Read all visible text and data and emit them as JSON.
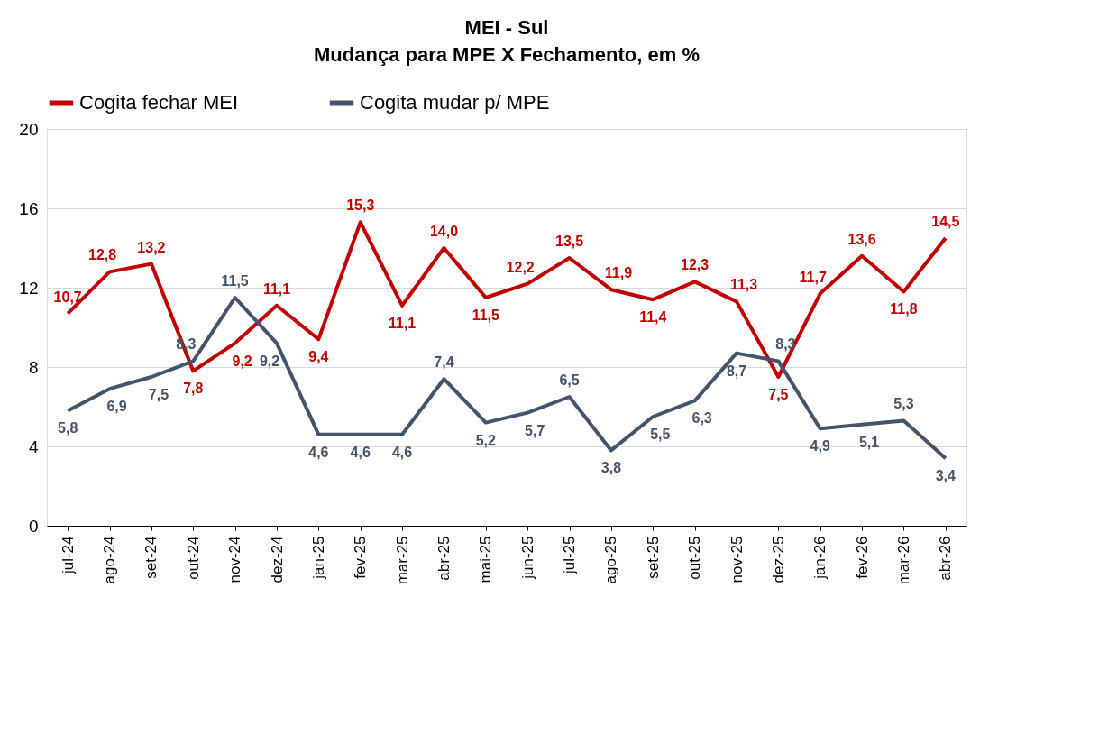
{
  "chart_data": {
    "type": "line",
    "title": "MEI - Sul",
    "subtitle": "Mudança para MPE X Fechamento, em %",
    "categories": [
      "jul-24",
      "ago-24",
      "set-24",
      "out-24",
      "nov-24",
      "dez-24",
      "jan-25",
      "fev-25",
      "mar-25",
      "abr-25",
      "mai-25",
      "jun-25",
      "jul-25",
      "ago-25",
      "set-25",
      "out-25",
      "nov-25",
      "dez-25",
      "jan-26",
      "fev-26",
      "mar-26",
      "abr-26"
    ],
    "series": [
      {
        "name": "Cogita fechar MEI",
        "color": "#c00000",
        "values": [
          10.7,
          12.8,
          13.2,
          7.8,
          9.2,
          11.1,
          9.4,
          15.3,
          11.1,
          14.0,
          11.5,
          12.2,
          13.5,
          11.9,
          11.4,
          12.3,
          11.3,
          7.5,
          11.7,
          13.6,
          11.8,
          14.5
        ],
        "value_labels": [
          "10,7",
          "12,8",
          "13,2",
          "7,8",
          "9,2",
          "11,1",
          "9,4",
          "15,3",
          "11,1",
          "14,0",
          "11,5",
          "12,2",
          "13,5",
          "11,9",
          "11,4",
          "12,3",
          "11,3",
          "7,5",
          "11,7",
          "13,6",
          "11,8",
          "14,5"
        ]
      },
      {
        "name": "Cogita mudar p/ MPE",
        "color": "#44546a",
        "values": [
          5.8,
          6.9,
          7.5,
          8.3,
          11.5,
          9.2,
          4.6,
          4.6,
          4.6,
          7.4,
          5.2,
          5.7,
          6.5,
          3.8,
          5.5,
          6.3,
          8.7,
          8.3,
          4.9,
          5.1,
          5.3,
          3.4
        ],
        "value_labels": [
          "5,8",
          "6,9",
          "7,5",
          "8,3",
          "11,5",
          "9,2",
          "4,6",
          "4,6",
          "4,6",
          "7,4",
          "5,2",
          "5,7",
          "6,5",
          "3,8",
          "5,5",
          "6,3",
          "8,7",
          "8,3",
          "4,9",
          "5,1",
          "5,3",
          "3,4"
        ]
      }
    ],
    "ylim": [
      0,
      20
    ],
    "yticks": [
      0,
      4,
      8,
      12,
      16,
      20
    ],
    "grid": "y",
    "legend": "top",
    "line_style": "solid",
    "marker": "none"
  }
}
